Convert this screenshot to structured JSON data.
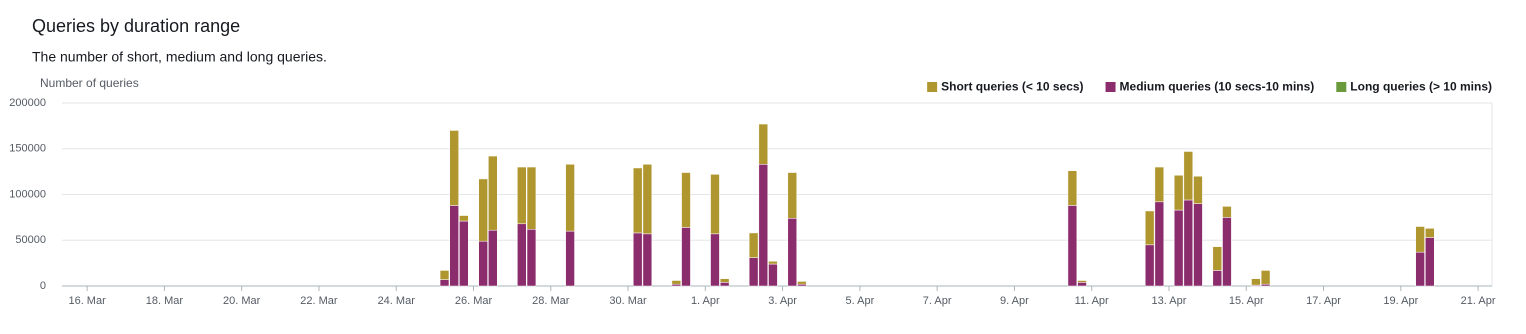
{
  "chart_data": {
    "type": "bar",
    "stacked": true,
    "title": "Queries by duration range",
    "subtitle": "The number of short, medium and long queries.",
    "y_label": "Number of queries",
    "legend": "top-right",
    "grid": true,
    "x": [
      25.25,
      25.5,
      25.75,
      26.25,
      26.5,
      27.25,
      27.5,
      28.5,
      30.25,
      30.5,
      31.25,
      31.5,
      32.25,
      32.5,
      33.25,
      33.5,
      33.75,
      34.25,
      34.5,
      41.5,
      41.75,
      43.5,
      43.75,
      44.25,
      44.5,
      44.75,
      45.25,
      45.5,
      46.25,
      46.5,
      50.5,
      50.75
    ],
    "bin_width": 0.25,
    "series": [
      {
        "name": "Short queries (< 10 secs)",
        "color": "#b0962f",
        "values": [
          10000,
          82000,
          6000,
          68000,
          81000,
          62000,
          68000,
          73000,
          71000,
          76000,
          4000,
          60000,
          65000,
          4000,
          27000,
          44000,
          3000,
          50000,
          3000,
          38000,
          2000,
          37000,
          38000,
          38000,
          53000,
          30000,
          26000,
          12000,
          7000,
          15000,
          28000,
          10000
        ]
      },
      {
        "name": "Medium queries (10 secs-10 mins)",
        "color": "#8b2c6d",
        "values": [
          7000,
          88000,
          71000,
          49000,
          61000,
          68000,
          62000,
          60000,
          58000,
          57000,
          2000,
          64000,
          57000,
          4000,
          31000,
          133000,
          24000,
          74000,
          2000,
          88000,
          4000,
          45000,
          92000,
          83000,
          94000,
          90000,
          17000,
          75000,
          1000,
          2000,
          37000,
          53000
        ]
      },
      {
        "name": "Long queries (> 10 mins)",
        "color": "#6a9a3c",
        "values": [
          0,
          0,
          0,
          0,
          0,
          0,
          0,
          0,
          0,
          0,
          0,
          0,
          0,
          0,
          0,
          0,
          0,
          0,
          0,
          0,
          0,
          0,
          0,
          0,
          0,
          0,
          0,
          0,
          0,
          0,
          0,
          0
        ]
      }
    ],
    "xlim": [
      15.35,
      52.36
    ],
    "xticks": [
      {
        "value": 16,
        "label": "16. Mar"
      },
      {
        "value": 18,
        "label": "18. Mar"
      },
      {
        "value": 20,
        "label": "20. Mar"
      },
      {
        "value": 22,
        "label": "22. Mar"
      },
      {
        "value": 24,
        "label": "24. Mar"
      },
      {
        "value": 26,
        "label": "26. Mar"
      },
      {
        "value": 28,
        "label": "28. Mar"
      },
      {
        "value": 30,
        "label": "30. Mar"
      },
      {
        "value": 32,
        "label": "1. Apr"
      },
      {
        "value": 34,
        "label": "3. Apr"
      },
      {
        "value": 36,
        "label": "5. Apr"
      },
      {
        "value": 38,
        "label": "7. Apr"
      },
      {
        "value": 40,
        "label": "9. Apr"
      },
      {
        "value": 42,
        "label": "11. Apr"
      },
      {
        "value": 44,
        "label": "13. Apr"
      },
      {
        "value": 46,
        "label": "15. Apr"
      },
      {
        "value": 48,
        "label": "17. Apr"
      },
      {
        "value": 50,
        "label": "19. Apr"
      },
      {
        "value": 52,
        "label": "21. Apr"
      }
    ],
    "ylim": [
      0,
      200000
    ],
    "yticks": [
      0,
      50000,
      100000,
      150000,
      200000
    ]
  }
}
